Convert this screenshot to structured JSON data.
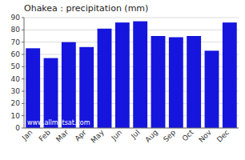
{
  "chart_data": {
    "type": "bar",
    "title": "Ohakea : precipitation (mm)",
    "categories": [
      "Jan",
      "Feb",
      "Mar",
      "Apr",
      "May",
      "Jun",
      "Jul",
      "Aug",
      "Sep",
      "Oct",
      "Nov",
      "Dec"
    ],
    "values": [
      65,
      57,
      70,
      66,
      81,
      86,
      87,
      75,
      74,
      75,
      63,
      86
    ],
    "color": "#1515dd",
    "ylim": [
      0,
      90
    ],
    "yticks": [
      0,
      10,
      20,
      30,
      40,
      50,
      60,
      70,
      80,
      90
    ],
    "grid": true,
    "annotations": [
      "www.allmetsat.com"
    ]
  }
}
